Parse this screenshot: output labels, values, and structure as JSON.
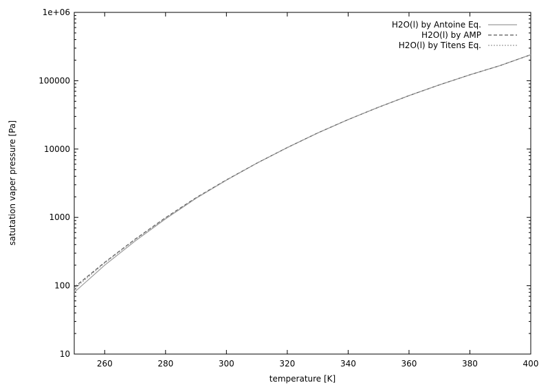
{
  "chart_data": {
    "type": "line",
    "xlabel": "temperature [K]",
    "ylabel": "satutation vaper pressure [Pa]",
    "xlim": [
      250,
      400
    ],
    "ylim": [
      10,
      1000000
    ],
    "yscale": "log",
    "grid": false,
    "legend_position": "top-right",
    "x_ticks": [
      "260",
      "280",
      "300",
      "320",
      "340",
      "360",
      "380",
      "400"
    ],
    "y_ticks": [
      "10",
      "100",
      "1000",
      "10000",
      "100000",
      "1e+06"
    ],
    "x": [
      250,
      260,
      270,
      280,
      290,
      300,
      310,
      320,
      330,
      340,
      350,
      360,
      370,
      380,
      390,
      400
    ],
    "series": [
      {
        "name": "H2O(l) by Antoine Eq.",
        "style": "solid",
        "color": "#9a9a9a",
        "values": [
          80,
          200,
          450,
          950,
          1900,
          3500,
          6200,
          10500,
          17200,
          27000,
          41000,
          60500,
          87000,
          122000,
          167000,
          240000
        ]
      },
      {
        "name": "H2O(l) by AMP",
        "style": "dashed",
        "color": "#555555",
        "values": [
          95,
          220,
          480,
          990,
          1940,
          3540,
          6220,
          10520,
          17200,
          27000,
          41000,
          60500,
          87000,
          122000,
          167000,
          240000
        ]
      },
      {
        "name": "H2O(l) by Titens Eq.",
        "style": "dotted",
        "color": "#9a9a9a",
        "values": [
          90,
          215,
          470,
          975,
          1920,
          3520,
          6210,
          10510,
          17200,
          27000,
          41000,
          60500,
          87000,
          122000,
          167000,
          240000
        ]
      }
    ]
  }
}
